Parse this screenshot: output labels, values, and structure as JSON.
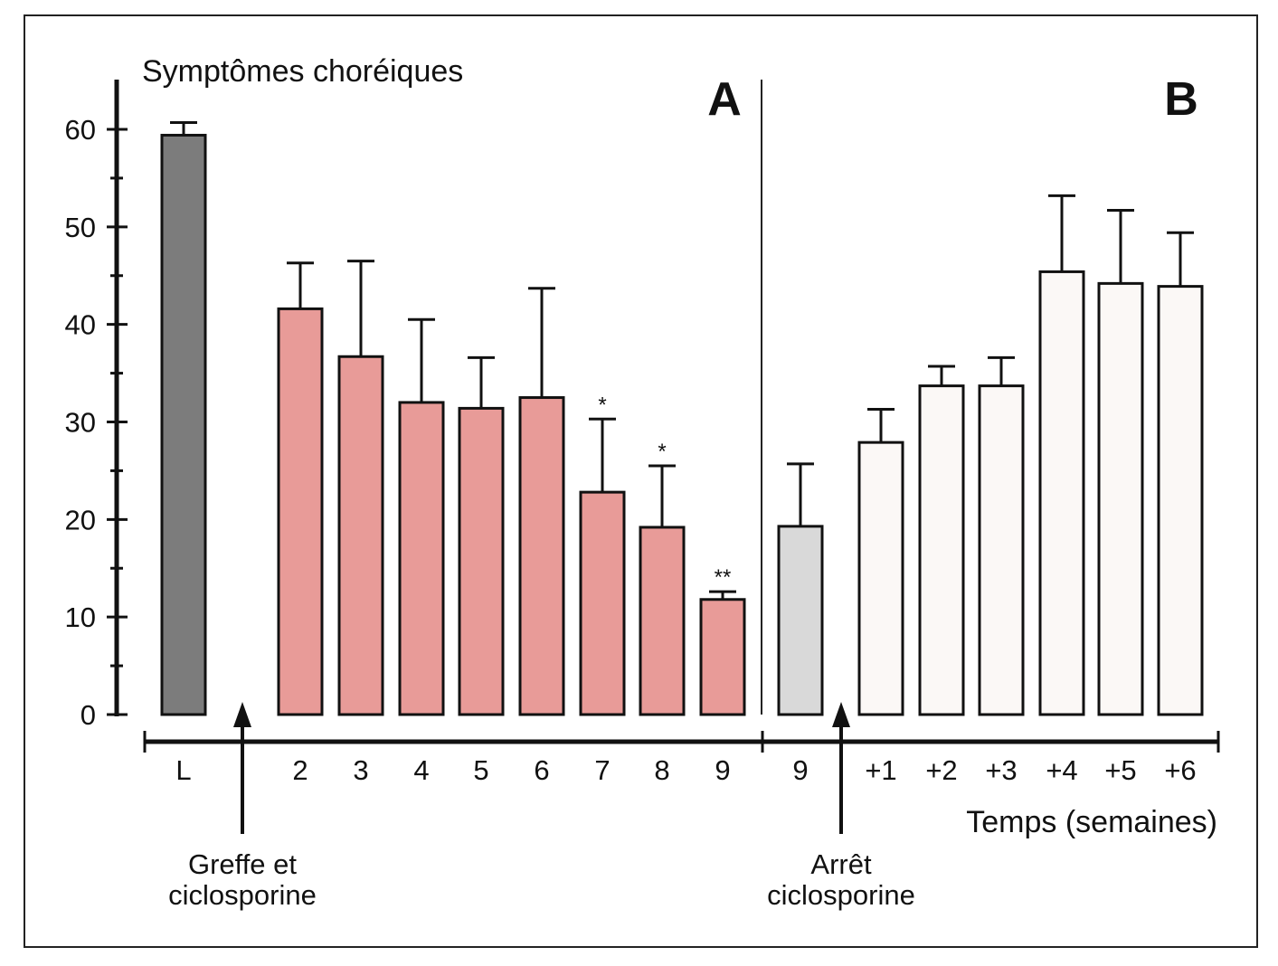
{
  "chart_data": {
    "type": "bar",
    "title": "",
    "ylabel": "Symptômes choréiques",
    "xlabel": "Temps (semaines)",
    "ylim": [
      0,
      60
    ],
    "yticks": [
      0,
      10,
      20,
      30,
      40,
      50,
      60
    ],
    "ytick_labels": [
      "0",
      "10",
      "20",
      "30",
      "40",
      "50",
      "60"
    ],
    "panels": [
      {
        "label": "A"
      },
      {
        "label": "B"
      }
    ],
    "categories": [
      "L",
      "2",
      "3",
      "4",
      "5",
      "6",
      "7",
      "8",
      "9",
      "9",
      "+1",
      "+2",
      "+3",
      "+4",
      "+5",
      "+6"
    ],
    "values": [
      59.4,
      41.6,
      36.7,
      32.0,
      31.4,
      32.5,
      22.8,
      19.2,
      11.8,
      19.3,
      27.9,
      33.7,
      33.7,
      45.4,
      44.2,
      43.9
    ],
    "error_upper": [
      60.7,
      46.3,
      46.5,
      40.5,
      36.6,
      43.7,
      30.3,
      25.5,
      12.6,
      25.7,
      31.3,
      35.7,
      36.6,
      53.2,
      51.7,
      49.4
    ],
    "significance": [
      "",
      "",
      "",
      "",
      "",
      "",
      "*",
      "*",
      "**",
      "",
      "",
      "",
      "",
      "",
      "",
      ""
    ],
    "groups": [
      "baseline",
      "cyclo",
      "cyclo",
      "cyclo",
      "cyclo",
      "cyclo",
      "cyclo",
      "cyclo",
      "cyclo",
      "stop",
      "after",
      "after",
      "after",
      "after",
      "after",
      "after"
    ],
    "group_colors": {
      "baseline": "#7c7c7c",
      "cyclo": "#e89b98",
      "stop": "#d9d9d9",
      "after": "#fbf8f6"
    },
    "annotations": [
      {
        "text_lines": [
          "Greffe et",
          "ciclosporine"
        ]
      },
      {
        "text_lines": [
          "Arrêt",
          "ciclosporine"
        ]
      }
    ]
  }
}
